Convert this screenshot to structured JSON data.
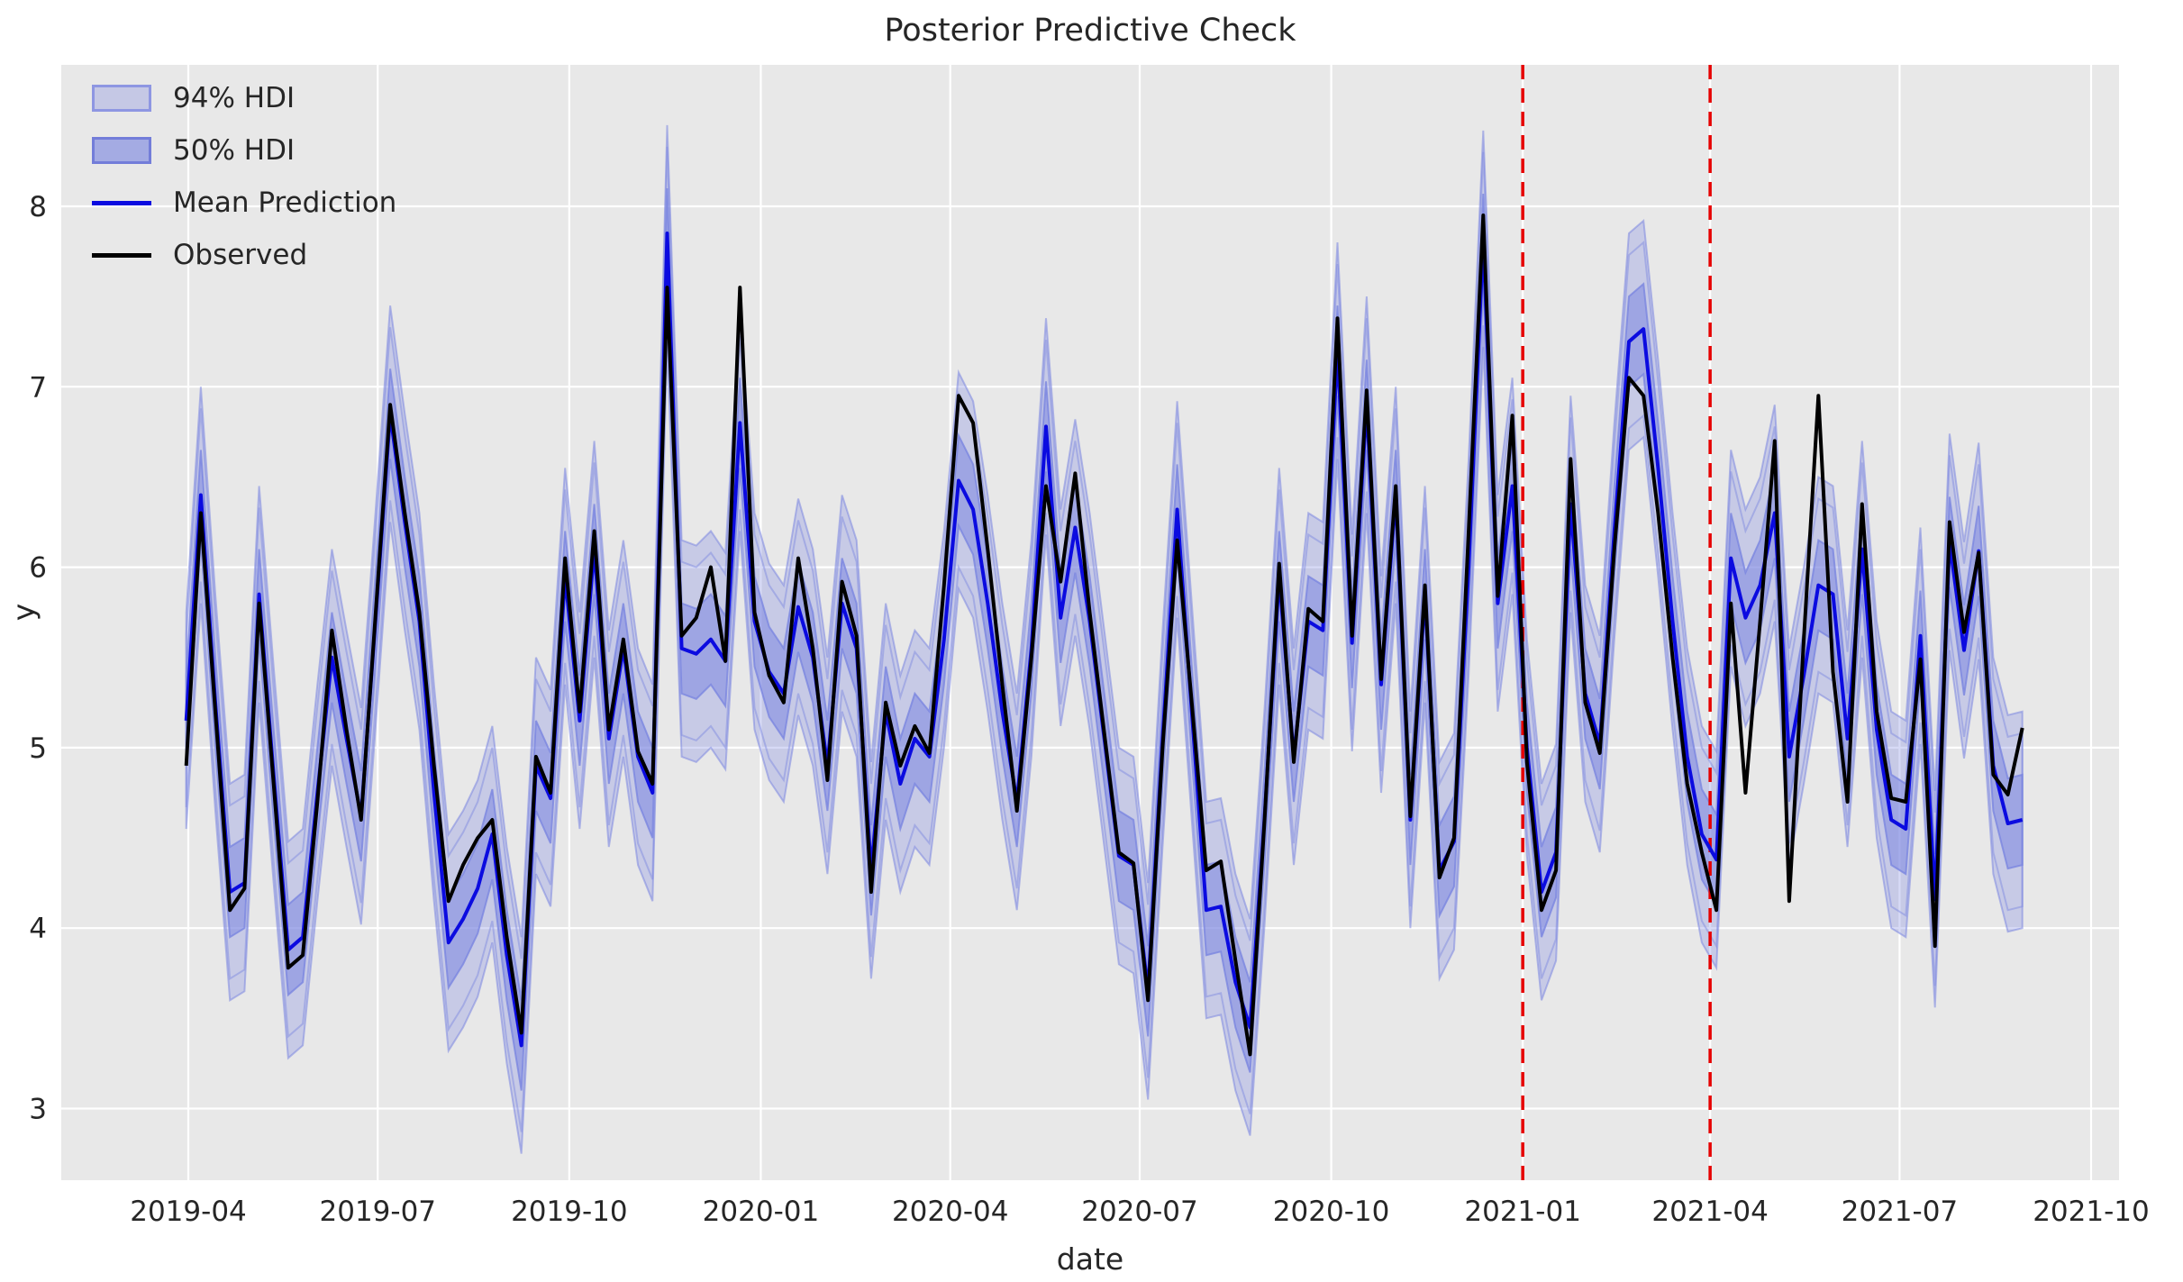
{
  "title": "Posterior Predictive Check",
  "chart_data": {
    "type": "line",
    "title": "Posterior Predictive Check",
    "xlabel": "date",
    "ylabel": "y",
    "x_ticks": [
      {
        "label": "2019-04",
        "day": 0
      },
      {
        "label": "2019-07",
        "day": 91
      },
      {
        "label": "2019-10",
        "day": 183
      },
      {
        "label": "2020-01",
        "day": 275
      },
      {
        "label": "2020-04",
        "day": 366
      },
      {
        "label": "2020-07",
        "day": 457
      },
      {
        "label": "2020-10",
        "day": 549
      },
      {
        "label": "2021-01",
        "day": 641
      },
      {
        "label": "2021-04",
        "day": 731
      },
      {
        "label": "2021-07",
        "day": 822
      },
      {
        "label": "2021-10",
        "day": 914
      }
    ],
    "y_ticks": [
      3,
      4,
      5,
      6,
      7,
      8
    ],
    "ylim": [
      2.6,
      8.78
    ],
    "grid": true,
    "legend_position": "upper left",
    "series_start_date": "2019-03-31",
    "series_step_days": 7,
    "series_start_day": -1,
    "legend": [
      {
        "label": "94% HDI",
        "type": "band"
      },
      {
        "label": "50% HDI",
        "type": "band"
      },
      {
        "label": "Mean Prediction",
        "type": "line"
      },
      {
        "label": "Observed",
        "type": "line"
      }
    ],
    "hdi94_half": 0.6,
    "hdi50_half": 0.25,
    "red_dashed_lines": [
      {
        "date": "2021-01-01",
        "day": 641
      },
      {
        "date": "2021-04-01",
        "day": 731
      }
    ],
    "observed": [
      4.9,
      6.3,
      5.2,
      4.1,
      4.22,
      5.8,
      4.8,
      3.78,
      3.85,
      4.7,
      5.65,
      5.1,
      4.6,
      5.75,
      6.9,
      6.3,
      5.75,
      4.9,
      4.15,
      4.35,
      4.5,
      4.6,
      3.95,
      3.42,
      4.95,
      4.75,
      6.05,
      5.2,
      6.2,
      5.1,
      5.6,
      4.98,
      4.8,
      7.55,
      5.62,
      5.72,
      6.0,
      5.48,
      7.55,
      5.75,
      5.4,
      5.25,
      6.05,
      5.55,
      4.82,
      5.92,
      5.62,
      4.2,
      5.25,
      4.9,
      5.12,
      4.97,
      5.9,
      6.95,
      6.8,
      6.1,
      5.35,
      4.65,
      5.5,
      6.45,
      5.92,
      6.52,
      5.75,
      5.08,
      4.42,
      4.36,
      3.6,
      5.0,
      6.15,
      5.25,
      4.32,
      4.37,
      3.82,
      3.3,
      4.6,
      6.02,
      4.92,
      5.77,
      5.7,
      7.38,
      5.62,
      6.98,
      5.38,
      6.45,
      4.62,
      5.9,
      4.28,
      4.5,
      6.2,
      7.95,
      5.84,
      6.84,
      4.92,
      4.1,
      4.32,
      6.6,
      5.25,
      4.97,
      6.1,
      7.05,
      6.95,
      6.3,
      5.5,
      4.8,
      4.42,
      4.1,
      5.8,
      4.75,
      5.7,
      6.7,
      4.15,
      5.6,
      6.95,
      5.42,
      4.7,
      6.35,
      5.2,
      4.72,
      4.7,
      5.49,
      3.9,
      6.25,
      5.64,
      6.08,
      4.85,
      4.74,
      5.11
    ],
    "mean": [
      5.15,
      6.4,
      5.25,
      4.2,
      4.25,
      5.85,
      4.85,
      3.88,
      3.95,
      4.75,
      5.5,
      5.05,
      4.62,
      5.72,
      6.85,
      6.25,
      5.7,
      4.75,
      3.92,
      4.05,
      4.22,
      4.52,
      3.85,
      3.35,
      4.9,
      4.72,
      5.95,
      5.15,
      6.1,
      5.05,
      5.55,
      4.95,
      4.75,
      7.85,
      5.55,
      5.52,
      5.6,
      5.48,
      6.8,
      5.7,
      5.42,
      5.3,
      5.78,
      5.5,
      4.9,
      5.8,
      5.55,
      4.32,
      5.2,
      4.8,
      5.05,
      4.95,
      5.6,
      6.48,
      6.32,
      5.8,
      5.2,
      4.7,
      5.55,
      6.78,
      5.72,
      6.22,
      5.7,
      5.05,
      4.4,
      4.35,
      3.65,
      5.05,
      6.32,
      5.2,
      4.1,
      4.12,
      3.7,
      3.45,
      4.62,
      5.95,
      4.95,
      5.7,
      5.65,
      7.2,
      5.58,
      6.9,
      5.35,
      6.4,
      4.6,
      5.85,
      4.32,
      4.48,
      6.0,
      7.82,
      5.8,
      6.45,
      5.0,
      4.2,
      4.42,
      6.35,
      5.3,
      5.02,
      6.2,
      7.25,
      7.32,
      6.55,
      5.7,
      4.95,
      4.52,
      4.38,
      6.05,
      5.72,
      5.9,
      6.3,
      4.95,
      5.4,
      5.9,
      5.85,
      5.05,
      6.1,
      5.1,
      4.6,
      4.55,
      5.62,
      4.16,
      6.14,
      5.54,
      6.09,
      4.9,
      4.58,
      4.6
    ],
    "colors": {
      "observed": "#000000",
      "mean": "#0b0be0",
      "band": "#7b86e0",
      "red_line": "#e60000",
      "plot_bg": "#e8e8e8",
      "grid": "#ffffff",
      "text": "#262626"
    }
  }
}
